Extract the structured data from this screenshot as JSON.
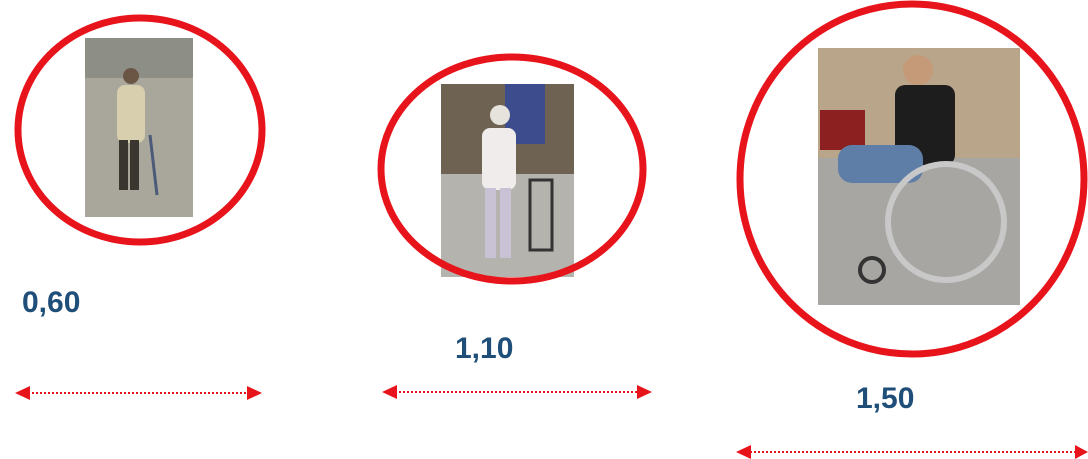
{
  "items": [
    {
      "label": "0,60"
    },
    {
      "label": "1,10"
    },
    {
      "label": "1,50"
    }
  ]
}
